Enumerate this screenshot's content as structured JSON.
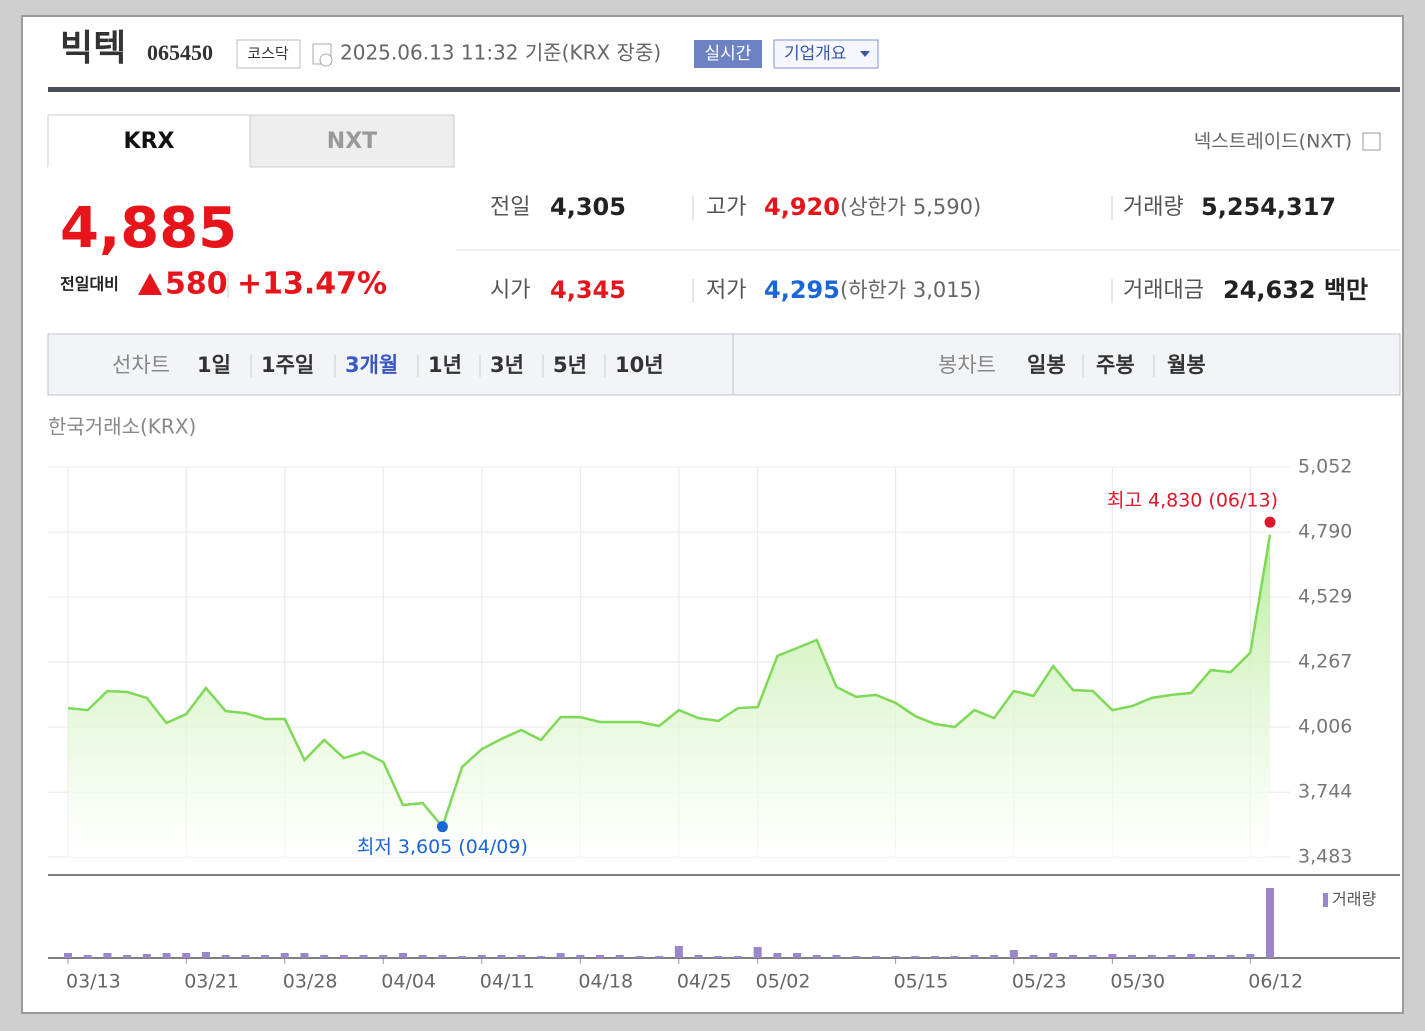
{
  "header": {
    "name": "빅텍",
    "code": "065450",
    "market": "코스닥",
    "timestamp": "2025.06.13 11:32 기준(KRX 장중)",
    "realtime_button": "실시간",
    "company_button": "기업개요"
  },
  "exchange_tabs": [
    "KRX",
    "NXT"
  ],
  "nxt_link": "넥스트레이드(NXT)",
  "quote": {
    "price": "4,885",
    "change_label": "전일대비",
    "change": "580",
    "change_rate": "+13.47%"
  },
  "stats": [
    {
      "label": "전일",
      "value": "4,305"
    },
    {
      "label": "고가",
      "value": "4,920",
      "note": "(상한가 5,590)"
    },
    {
      "label": "거래량",
      "value": "5,254,317"
    },
    {
      "label": "시가",
      "value": "4,345"
    },
    {
      "label": "저가",
      "value": "4,295",
      "note": "(하한가 3,015)"
    },
    {
      "label": "거래대금",
      "value": "24,632 백만"
    }
  ],
  "period_tabs": {
    "line_label": "선차트",
    "line_items": [
      "1일",
      "1주일",
      "3개월",
      "1년",
      "3년",
      "5년",
      "10년"
    ],
    "candle_label": "봉차트",
    "candle_items": [
      "일봉",
      "주봉",
      "월봉"
    ]
  },
  "chart_data": {
    "type": "line",
    "title": "한국거래소(KRX)",
    "color": "#7ed957",
    "categories": [
      "03/13",
      null,
      null,
      null,
      null,
      null,
      "03/21",
      null,
      null,
      null,
      null,
      "03/28",
      null,
      null,
      null,
      null,
      "04/04",
      null,
      null,
      null,
      null,
      "04/11",
      null,
      null,
      null,
      null,
      "04/18",
      null,
      null,
      null,
      null,
      "04/25",
      null,
      null,
      null,
      "05/02",
      null,
      null,
      null,
      null,
      null,
      null,
      "05/15",
      null,
      null,
      null,
      null,
      null,
      "05/23",
      null,
      null,
      null,
      null,
      "05/30",
      null,
      null,
      null,
      null,
      null,
      null,
      "06/12",
      null
    ],
    "values": [
      4082,
      4074,
      4151,
      4147,
      4123,
      4022,
      4058,
      4163,
      4070,
      4062,
      4038,
      4038,
      3873,
      3954,
      3881,
      3905,
      3865,
      3692,
      3700,
      3605,
      3845,
      3917,
      3958,
      3994,
      3954,
      4046,
      4046,
      4026,
      4026,
      4026,
      4010,
      4074,
      4042,
      4030,
      4082,
      4086,
      4292,
      4324,
      4356,
      4167,
      4127,
      4135,
      4103,
      4050,
      4018,
      4006,
      4074,
      4042,
      4151,
      4131,
      4251,
      4155,
      4151,
      4074,
      4090,
      4123,
      4135,
      4143,
      4235,
      4227,
      4305,
      4780
    ],
    "ylim": [
      3483,
      5052
    ],
    "yticks": [
      {
        "value": 3483,
        "label": "3,483"
      },
      {
        "value": 3744,
        "label": "3,744"
      },
      {
        "value": 4006,
        "label": "4,006"
      },
      {
        "value": 4267,
        "label": "4,267"
      },
      {
        "value": 4529,
        "label": "4,529"
      },
      {
        "value": 4790,
        "label": "4,790"
      },
      {
        "value": 5052,
        "label": "5,052"
      }
    ],
    "grid": true,
    "annotations": [
      {
        "text": "최고 4,830 (06/13)",
        "value": 4830,
        "at": 61,
        "color": "#e0162b"
      },
      {
        "text": "최저 3,605 (04/09)",
        "value": 3605,
        "at": 19,
        "color": "#1b66d6"
      }
    ],
    "volume_series": {
      "name": "거래량",
      "color": "#9a86c8",
      "values": [
        375000,
        225000,
        375000,
        225000,
        300000,
        375000,
        375000,
        450000,
        225000,
        225000,
        225000,
        375000,
        375000,
        225000,
        225000,
        225000,
        225000,
        375000,
        225000,
        225000,
        150000,
        225000,
        225000,
        225000,
        150000,
        375000,
        225000,
        225000,
        225000,
        150000,
        150000,
        900000,
        225000,
        150000,
        150000,
        825000,
        375000,
        375000,
        225000,
        225000,
        150000,
        150000,
        150000,
        150000,
        150000,
        150000,
        225000,
        225000,
        600000,
        225000,
        375000,
        225000,
        225000,
        300000,
        225000,
        225000,
        225000,
        300000,
        225000,
        225000,
        300000,
        5250000
      ]
    }
  }
}
